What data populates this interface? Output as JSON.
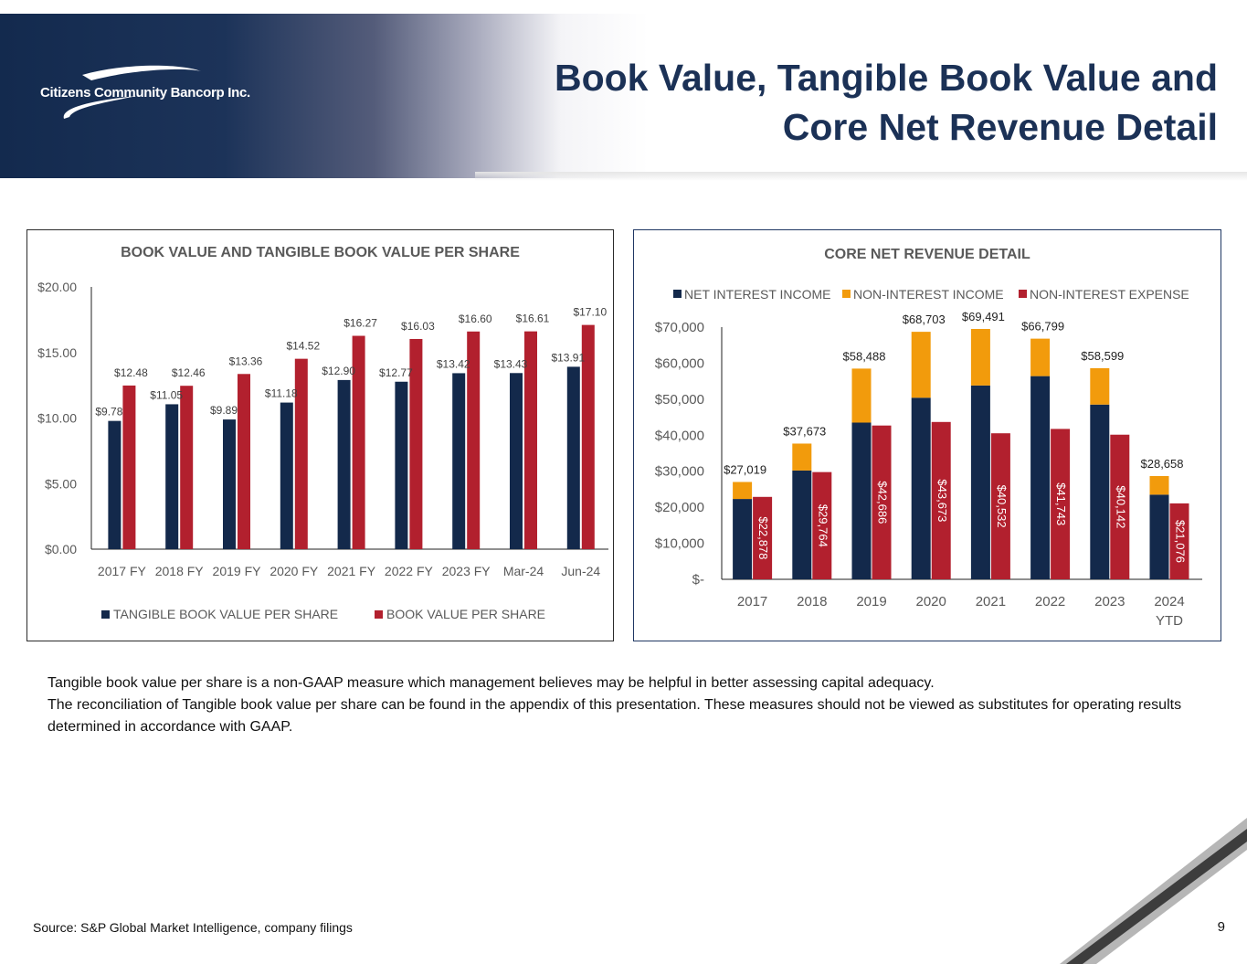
{
  "header": {
    "company": "Citizens Community Bancorp Inc.",
    "title_line1": "Book Value, Tangible Book Value and",
    "title_line2": "Core Net Revenue Detail"
  },
  "colors": {
    "navy": "#13294b",
    "red": "#b2202e",
    "orange": "#f29b0c"
  },
  "chart_data": [
    {
      "type": "bar",
      "title": "BOOK VALUE AND TANGIBLE BOOK VALUE PER SHARE",
      "categories": [
        "2017 FY",
        "2018 FY",
        "2019 FY",
        "2020 FY",
        "2021 FY",
        "2022 FY",
        "2023 FY",
        "Mar-24",
        "Jun-24"
      ],
      "series": [
        {
          "name": "TANGIBLE BOOK VALUE PER SHARE",
          "values": [
            9.78,
            11.05,
            9.89,
            11.18,
            12.9,
            12.77,
            13.42,
            13.43,
            13.91
          ],
          "labels": [
            "$9.78",
            "$11.05",
            "$9.89",
            "$11.18",
            "$12.90",
            "$12.77",
            "$13.42",
            "$13.43",
            "$13.91"
          ]
        },
        {
          "name": "BOOK VALUE PER SHARE",
          "values": [
            12.48,
            12.46,
            13.36,
            14.52,
            16.27,
            16.03,
            16.6,
            16.61,
            17.1
          ],
          "labels": [
            "$12.48",
            "$12.46",
            "$13.36",
            "$14.52",
            "$16.27",
            "$16.03",
            "$16.60",
            "$16.61",
            "$17.10"
          ]
        }
      ],
      "ylim": [
        0,
        20
      ],
      "yticks": [
        "$0.00",
        "$5.00",
        "$10.00",
        "$15.00",
        "$20.00"
      ],
      "legend": "bottom"
    },
    {
      "type": "bar",
      "title": "CORE NET REVENUE DETAIL",
      "categories": [
        "2017",
        "2018",
        "2019",
        "2020",
        "2021",
        "2022",
        "2023",
        "2024 YTD"
      ],
      "series": [
        {
          "name": "NET INTEREST INCOME",
          "values": [
            22300,
            30200,
            43500,
            50400,
            53800,
            56400,
            48500,
            23500
          ]
        },
        {
          "name": "NON-INTEREST INCOME",
          "values": [
            4719,
            7473,
            14988,
            18303,
            15691,
            10399,
            10099,
            5158
          ]
        },
        {
          "name": "NON-INTEREST EXPENSE",
          "values": [
            22878,
            29764,
            42686,
            43673,
            40532,
            41743,
            40142,
            21076
          ],
          "labels": [
            "$22,878",
            "$29,764",
            "$42,686",
            "$43,673",
            "$40,532",
            "$41,743",
            "$40,142",
            "$21,076"
          ]
        }
      ],
      "stack_totals": [
        "$27,019",
        "$37,673",
        "$58,488",
        "$68,703",
        "$69,491",
        "$66,799",
        "$58,599",
        "$28,658"
      ],
      "ylim": [
        0,
        70000
      ],
      "yticks": [
        "$-",
        "$10,000",
        "$20,000",
        "$30,000",
        "$40,000",
        "$50,000",
        "$60,000",
        "$70,000"
      ],
      "legend": "top"
    }
  ],
  "footnote": {
    "line1": "Tangible book value per share is a non-GAAP measure which management believes may be helpful in better assessing capital adequacy.",
    "line2": "The reconciliation of Tangible book value per share can be found in the appendix of this presentation. These measures should not be viewed as substitutes for  operating results determined in accordance with GAAP."
  },
  "source": "Source: S&P Global Market Intelligence, company filings",
  "page_number": "9"
}
